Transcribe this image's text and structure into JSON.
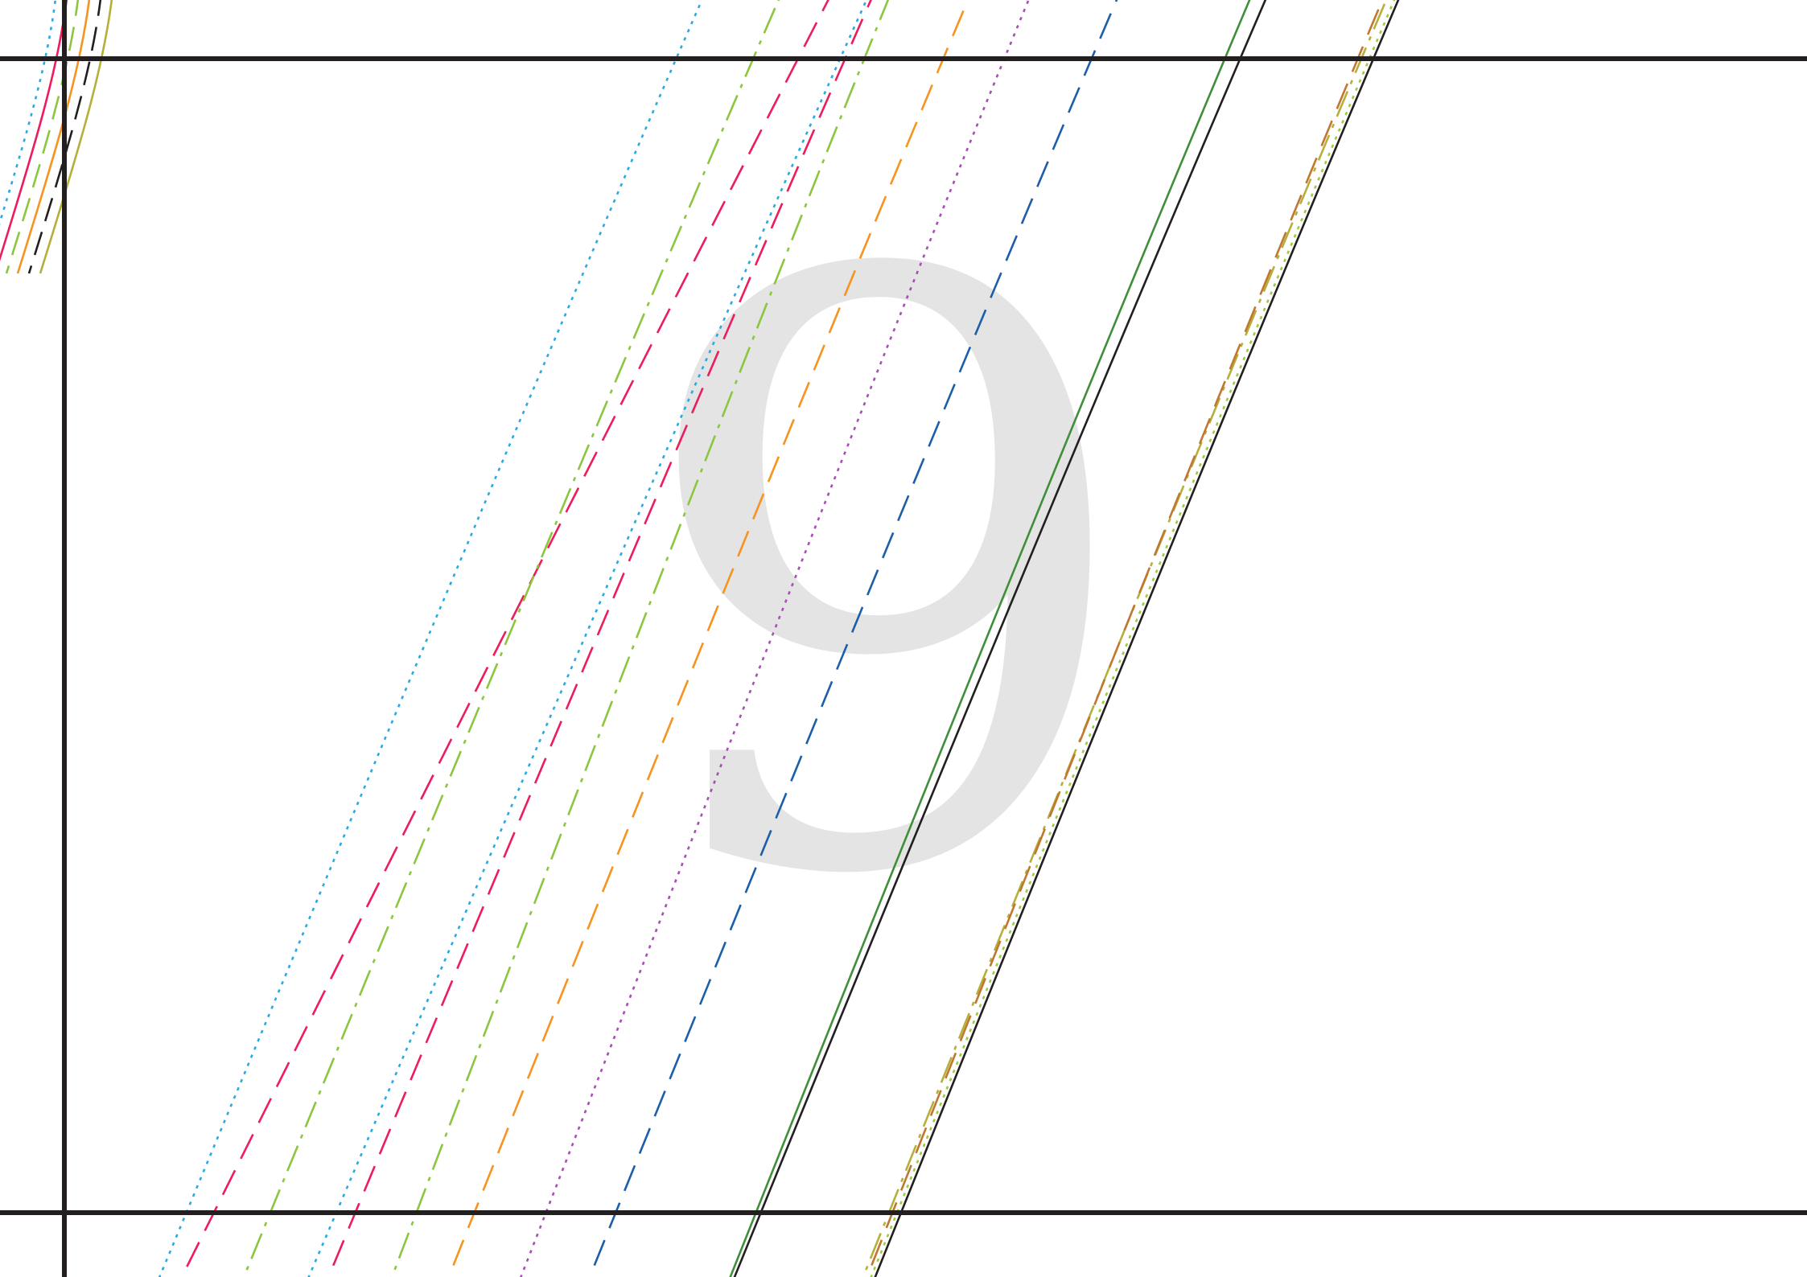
{
  "figure": {
    "numeral": "9",
    "numeral_color": "#e4e4e4",
    "guide_line_color": "#231f20",
    "background_color": "#ffffff"
  },
  "curves": [
    {
      "name": "curve-sky-dotted",
      "color": "#29abe2",
      "dash": "dotted"
    },
    {
      "name": "curve-red-dashed",
      "color": "#ed1c5c",
      "dash": "long-dash"
    },
    {
      "name": "curve-lightgreen-dashdot",
      "color": "#8cc63f",
      "dash": "dash-dot"
    },
    {
      "name": "curve-sky-dotted-2",
      "color": "#29abe2",
      "dash": "dotted"
    },
    {
      "name": "curve-red-dashed-2",
      "color": "#ed1c5c",
      "dash": "long-dash"
    },
    {
      "name": "curve-lightgreen-dashdot-2",
      "color": "#8cc63f",
      "dash": "dash-dot"
    },
    {
      "name": "curve-orange-dashed",
      "color": "#f7931e",
      "dash": "long-dash"
    },
    {
      "name": "curve-purple-dotted",
      "color": "#a84fb5",
      "dash": "dotted"
    },
    {
      "name": "curve-blue-dashed",
      "color": "#1b5fa8",
      "dash": "long-dash"
    },
    {
      "name": "curve-darkgreen-solid",
      "color": "#3f8f3a",
      "dash": "solid"
    },
    {
      "name": "curve-black-solid",
      "color": "#231f20",
      "dash": "solid"
    },
    {
      "name": "curve-olive-dashdot",
      "color": "#b5b03a",
      "dash": "dash-dot"
    },
    {
      "name": "curve-brown-dashed",
      "color": "#c1772f",
      "dash": "long-dash"
    },
    {
      "name": "curve-yellowgreen-dotted",
      "color": "#9ccc3c",
      "dash": "dotted"
    },
    {
      "name": "curve-black-solid-2",
      "color": "#231f20",
      "dash": "solid"
    }
  ]
}
